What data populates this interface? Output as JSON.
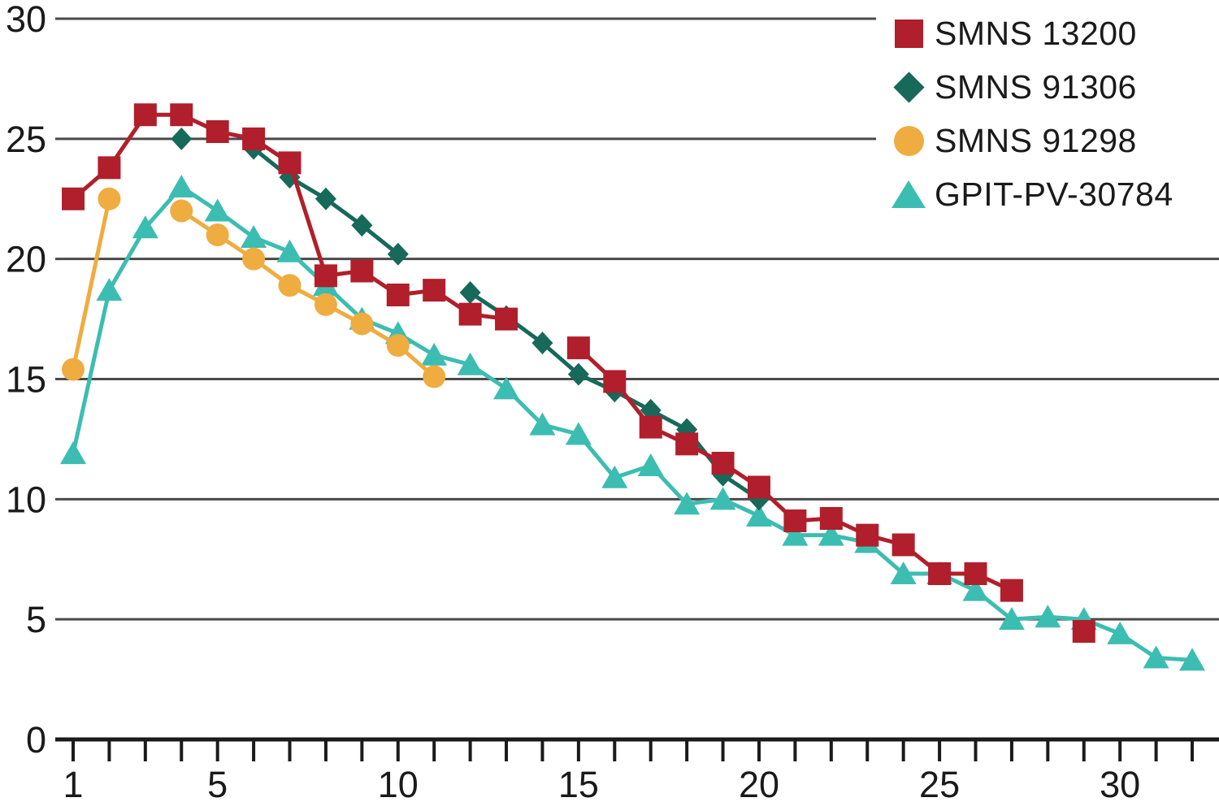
{
  "chart_data": {
    "type": "line",
    "title": "",
    "xlabel": "",
    "ylabel": "",
    "x_axis": {
      "min": 1,
      "max": 32,
      "minor_tick_step": 1,
      "labeled_ticks": [
        1,
        5,
        10,
        15,
        20,
        25,
        30
      ]
    },
    "y_axis": {
      "min": 0,
      "max": 30,
      "gridline_step": 5,
      "labeled_ticks": [
        0,
        5,
        10,
        15,
        20,
        25,
        30
      ]
    },
    "grid": "horizontal",
    "legend_position": "top-right",
    "colors": {
      "axis": "#1a1a1a",
      "gridline": "#4a4a4a",
      "text": "#1a1a1a",
      "background": "#ffffff"
    },
    "series": [
      {
        "name": "SMNS 13200",
        "marker": "square",
        "color": "#B01F2B",
        "points": [
          [
            1,
            22.5
          ],
          [
            2,
            23.8
          ],
          [
            3,
            26.0
          ],
          [
            4,
            26.0
          ],
          [
            5,
            25.3
          ],
          [
            6,
            25.0
          ],
          [
            7,
            24.0
          ],
          [
            8,
            19.3
          ],
          [
            9,
            19.5
          ],
          [
            10,
            18.5
          ],
          [
            11,
            18.7
          ],
          [
            12,
            17.7
          ],
          [
            13,
            17.5
          ],
          [
            14,
            null
          ],
          [
            15,
            16.3
          ],
          [
            16,
            14.9
          ],
          [
            17,
            13.0
          ],
          [
            18,
            12.3
          ],
          [
            19,
            11.5
          ],
          [
            20,
            10.5
          ],
          [
            21,
            9.1
          ],
          [
            22,
            9.2
          ],
          [
            23,
            8.5
          ],
          [
            24,
            8.1
          ],
          [
            25,
            6.9
          ],
          [
            26,
            6.9
          ],
          [
            27,
            6.2
          ],
          [
            28,
            null
          ],
          [
            29,
            4.5
          ]
        ]
      },
      {
        "name": "SMNS 91306",
        "marker": "diamond",
        "color": "#17695A",
        "points": [
          [
            4,
            25.0
          ],
          [
            5,
            null
          ],
          [
            6,
            24.6
          ],
          [
            7,
            23.4
          ],
          [
            8,
            22.5
          ],
          [
            9,
            21.4
          ],
          [
            10,
            20.2
          ],
          [
            11,
            null
          ],
          [
            12,
            18.6
          ],
          [
            13,
            17.6
          ],
          [
            14,
            16.5
          ],
          [
            15,
            15.2
          ],
          [
            16,
            14.5
          ],
          [
            17,
            13.7
          ],
          [
            18,
            12.9
          ],
          [
            19,
            11.0
          ],
          [
            20,
            10.0
          ]
        ]
      },
      {
        "name": "SMNS 91298",
        "marker": "circle",
        "color": "#EFAC40",
        "points": [
          [
            1,
            15.4
          ],
          [
            2,
            22.5
          ],
          [
            3,
            null
          ],
          [
            4,
            22.0
          ],
          [
            5,
            21.0
          ],
          [
            6,
            20.0
          ],
          [
            7,
            18.9
          ],
          [
            8,
            18.1
          ],
          [
            9,
            17.3
          ],
          [
            10,
            16.4
          ],
          [
            11,
            15.1
          ]
        ]
      },
      {
        "name": "GPIT-PV-30784",
        "marker": "triangle",
        "color": "#3CBDB2",
        "points": [
          [
            1,
            11.9
          ],
          [
            2,
            18.7
          ],
          [
            3,
            21.3
          ],
          [
            4,
            23.0
          ],
          [
            5,
            22.0
          ],
          [
            6,
            20.9
          ],
          [
            7,
            20.3
          ],
          [
            8,
            18.9
          ],
          [
            9,
            17.5
          ],
          [
            10,
            16.9
          ],
          [
            11,
            16.0
          ],
          [
            12,
            15.6
          ],
          [
            13,
            14.6
          ],
          [
            14,
            13.1
          ],
          [
            15,
            12.7
          ],
          [
            16,
            10.9
          ],
          [
            17,
            11.4
          ],
          [
            18,
            9.8
          ],
          [
            19,
            10.0
          ],
          [
            20,
            9.3
          ],
          [
            21,
            8.5
          ],
          [
            22,
            8.5
          ],
          [
            23,
            8.2
          ],
          [
            24,
            6.9
          ],
          [
            25,
            6.9
          ],
          [
            26,
            6.2
          ],
          [
            27,
            5.0
          ],
          [
            28,
            5.1
          ],
          [
            29,
            5.0
          ],
          [
            30,
            4.4
          ],
          [
            31,
            3.4
          ],
          [
            32,
            3.3
          ]
        ]
      }
    ]
  }
}
